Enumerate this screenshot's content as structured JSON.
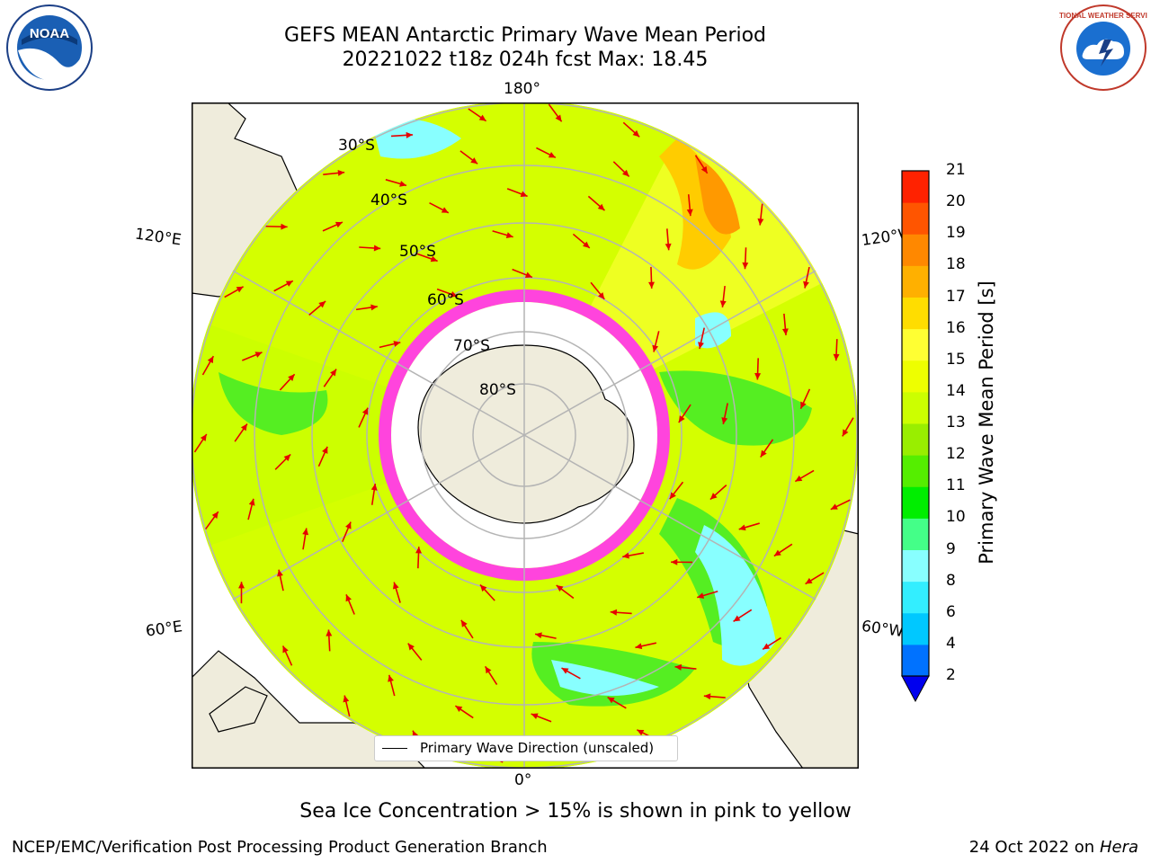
{
  "header": {
    "title_line1": "GEFS MEAN Antarctic Primary Wave Mean Period",
    "title_line2": "20221022 t18z 024h fcst   Max: 18.45"
  },
  "logos": {
    "left": "NOAA",
    "right": "NATIONAL WEATHER SERVICE"
  },
  "map": {
    "projection": "south-polar-stereographic",
    "longitude_labels": {
      "top": "180°",
      "bottom": "0°",
      "upper_left": "120°E",
      "upper_right": "120°W",
      "lower_left": "60°E",
      "lower_right": "60°W"
    },
    "latitude_labels": [
      "30°S",
      "40°S",
      "50°S",
      "60°S",
      "70°S",
      "80°S"
    ],
    "legend_text": "Primary Wave Direction (unscaled)",
    "arrow_color": "#e60000",
    "sea_ice_color": "#ff44dd",
    "land_color": "#efecdc"
  },
  "colorbar": {
    "label": "Primary Wave Mean Period [s]",
    "ticks": [
      "2",
      "4",
      "6",
      "8",
      "9",
      "10",
      "11",
      "12",
      "13",
      "14",
      "15",
      "16",
      "17",
      "18",
      "19",
      "20",
      "21"
    ],
    "colors": [
      "#0072ff",
      "#00c8ff",
      "#33eeff",
      "#88ffff",
      "#44ff88",
      "#00ee00",
      "#55ee00",
      "#99ee00",
      "#ccff00",
      "#eeff00",
      "#ffff33",
      "#ffdd00",
      "#ffb000",
      "#ff8800",
      "#ff5500",
      "#ff2200"
    ],
    "extend_color": "#0000ee"
  },
  "caption": "Sea Ice Concentration > 15% is shown in pink to yellow",
  "footer": {
    "left": "NCEP/EMC/Verification Post Processing Product Generation Branch",
    "right_date": "24 Oct 2022 on ",
    "right_machine": "Hera"
  }
}
